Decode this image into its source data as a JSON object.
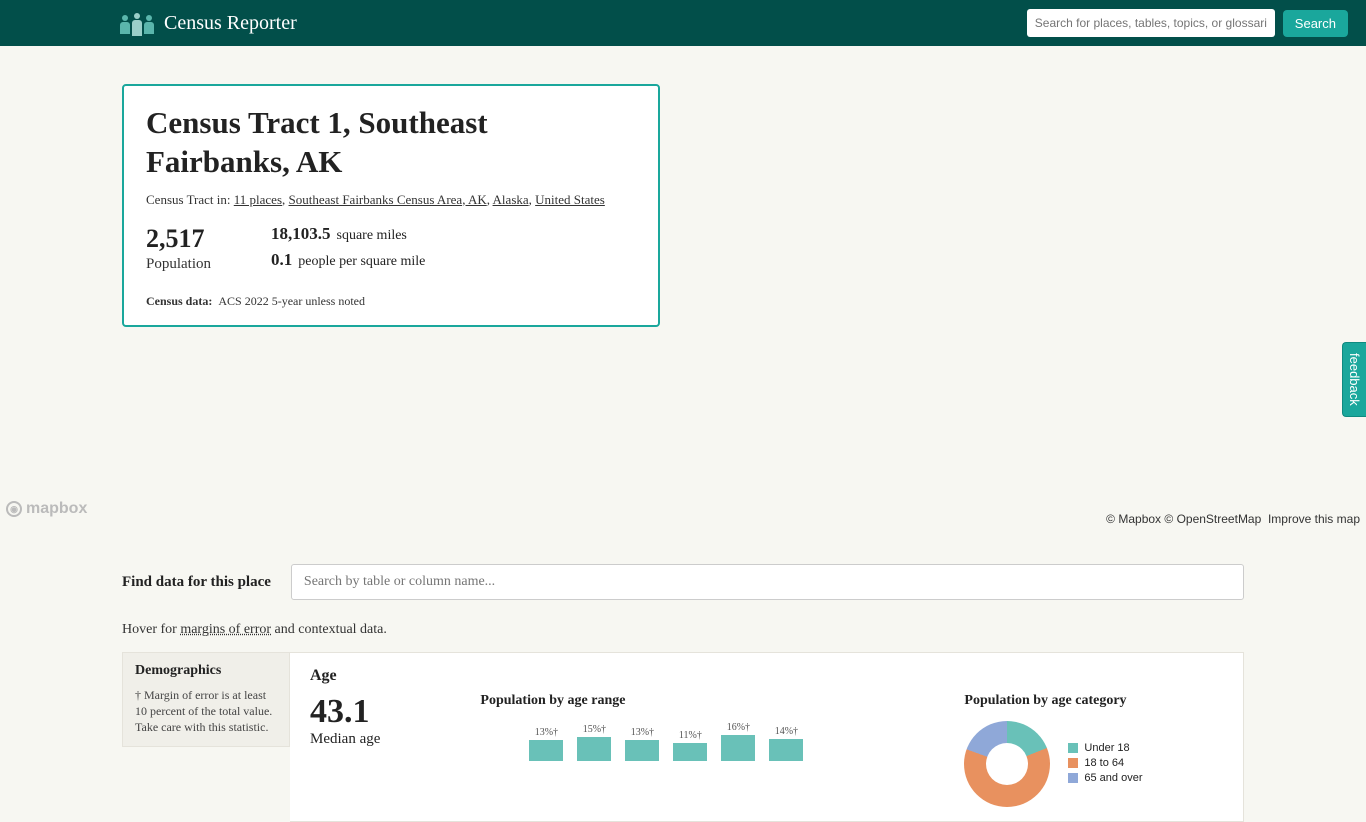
{
  "header": {
    "site_title": "Census Reporter",
    "search_placeholder": "Search for places, tables, topics, or glossaries",
    "search_button": "Search"
  },
  "info_card": {
    "title": "Census Tract 1, Southeast Fairbanks, AK",
    "breadcrumb_prefix": "Census Tract in: ",
    "breadcrumb_links": [
      "11 places",
      "Southeast Fairbanks Census Area, AK",
      "Alaska",
      "United States"
    ],
    "population_value": "2,517",
    "population_label": "Population",
    "area_value": "18,103.5",
    "area_unit": "square miles",
    "density_value": "0.1",
    "density_unit": "people per square mile",
    "data_note_label": "Census data:",
    "data_note_value": "ACS 2022 5-year unless noted"
  },
  "mapbox": {
    "logo_text": "mapbox",
    "attrib_mapbox": "© Mapbox",
    "attrib_osm": "© OpenStreetMap",
    "improve": "Improve this map"
  },
  "feedback": "feedback",
  "find": {
    "label": "Find data for this place",
    "placeholder": "Search by table or column name..."
  },
  "hover_note": {
    "pre": "Hover for ",
    "link": "margins of error",
    "post": " and contextual data."
  },
  "sidebar": {
    "title": "Demographics",
    "note": "† Margin of error is at least 10 percent of the total value. Take care with this statistic."
  },
  "age": {
    "section": "Age",
    "median_value": "43.1",
    "median_label": "Median age",
    "range_title": "Population by age range",
    "range_bars": [
      {
        "label": "",
        "pct": ""
      },
      {
        "label": "13%†",
        "pct": 13
      },
      {
        "label": "15%†",
        "pct": 15
      },
      {
        "label": "13%†",
        "pct": 13
      },
      {
        "label": "11%†",
        "pct": 11
      },
      {
        "label": "16%†",
        "pct": 16
      },
      {
        "label": "14%†",
        "pct": 14
      }
    ],
    "category_title": "Population by age category",
    "donut_colors": [
      "#69c1b8",
      "#e8915f",
      "#8fa8d8"
    ],
    "legend": [
      {
        "label": "Under 18",
        "color": "#69c1b8"
      },
      {
        "label": "18 to 64",
        "color": "#e8915f"
      },
      {
        "label": "65 and over",
        "color": "#8fa8d8"
      }
    ]
  }
}
